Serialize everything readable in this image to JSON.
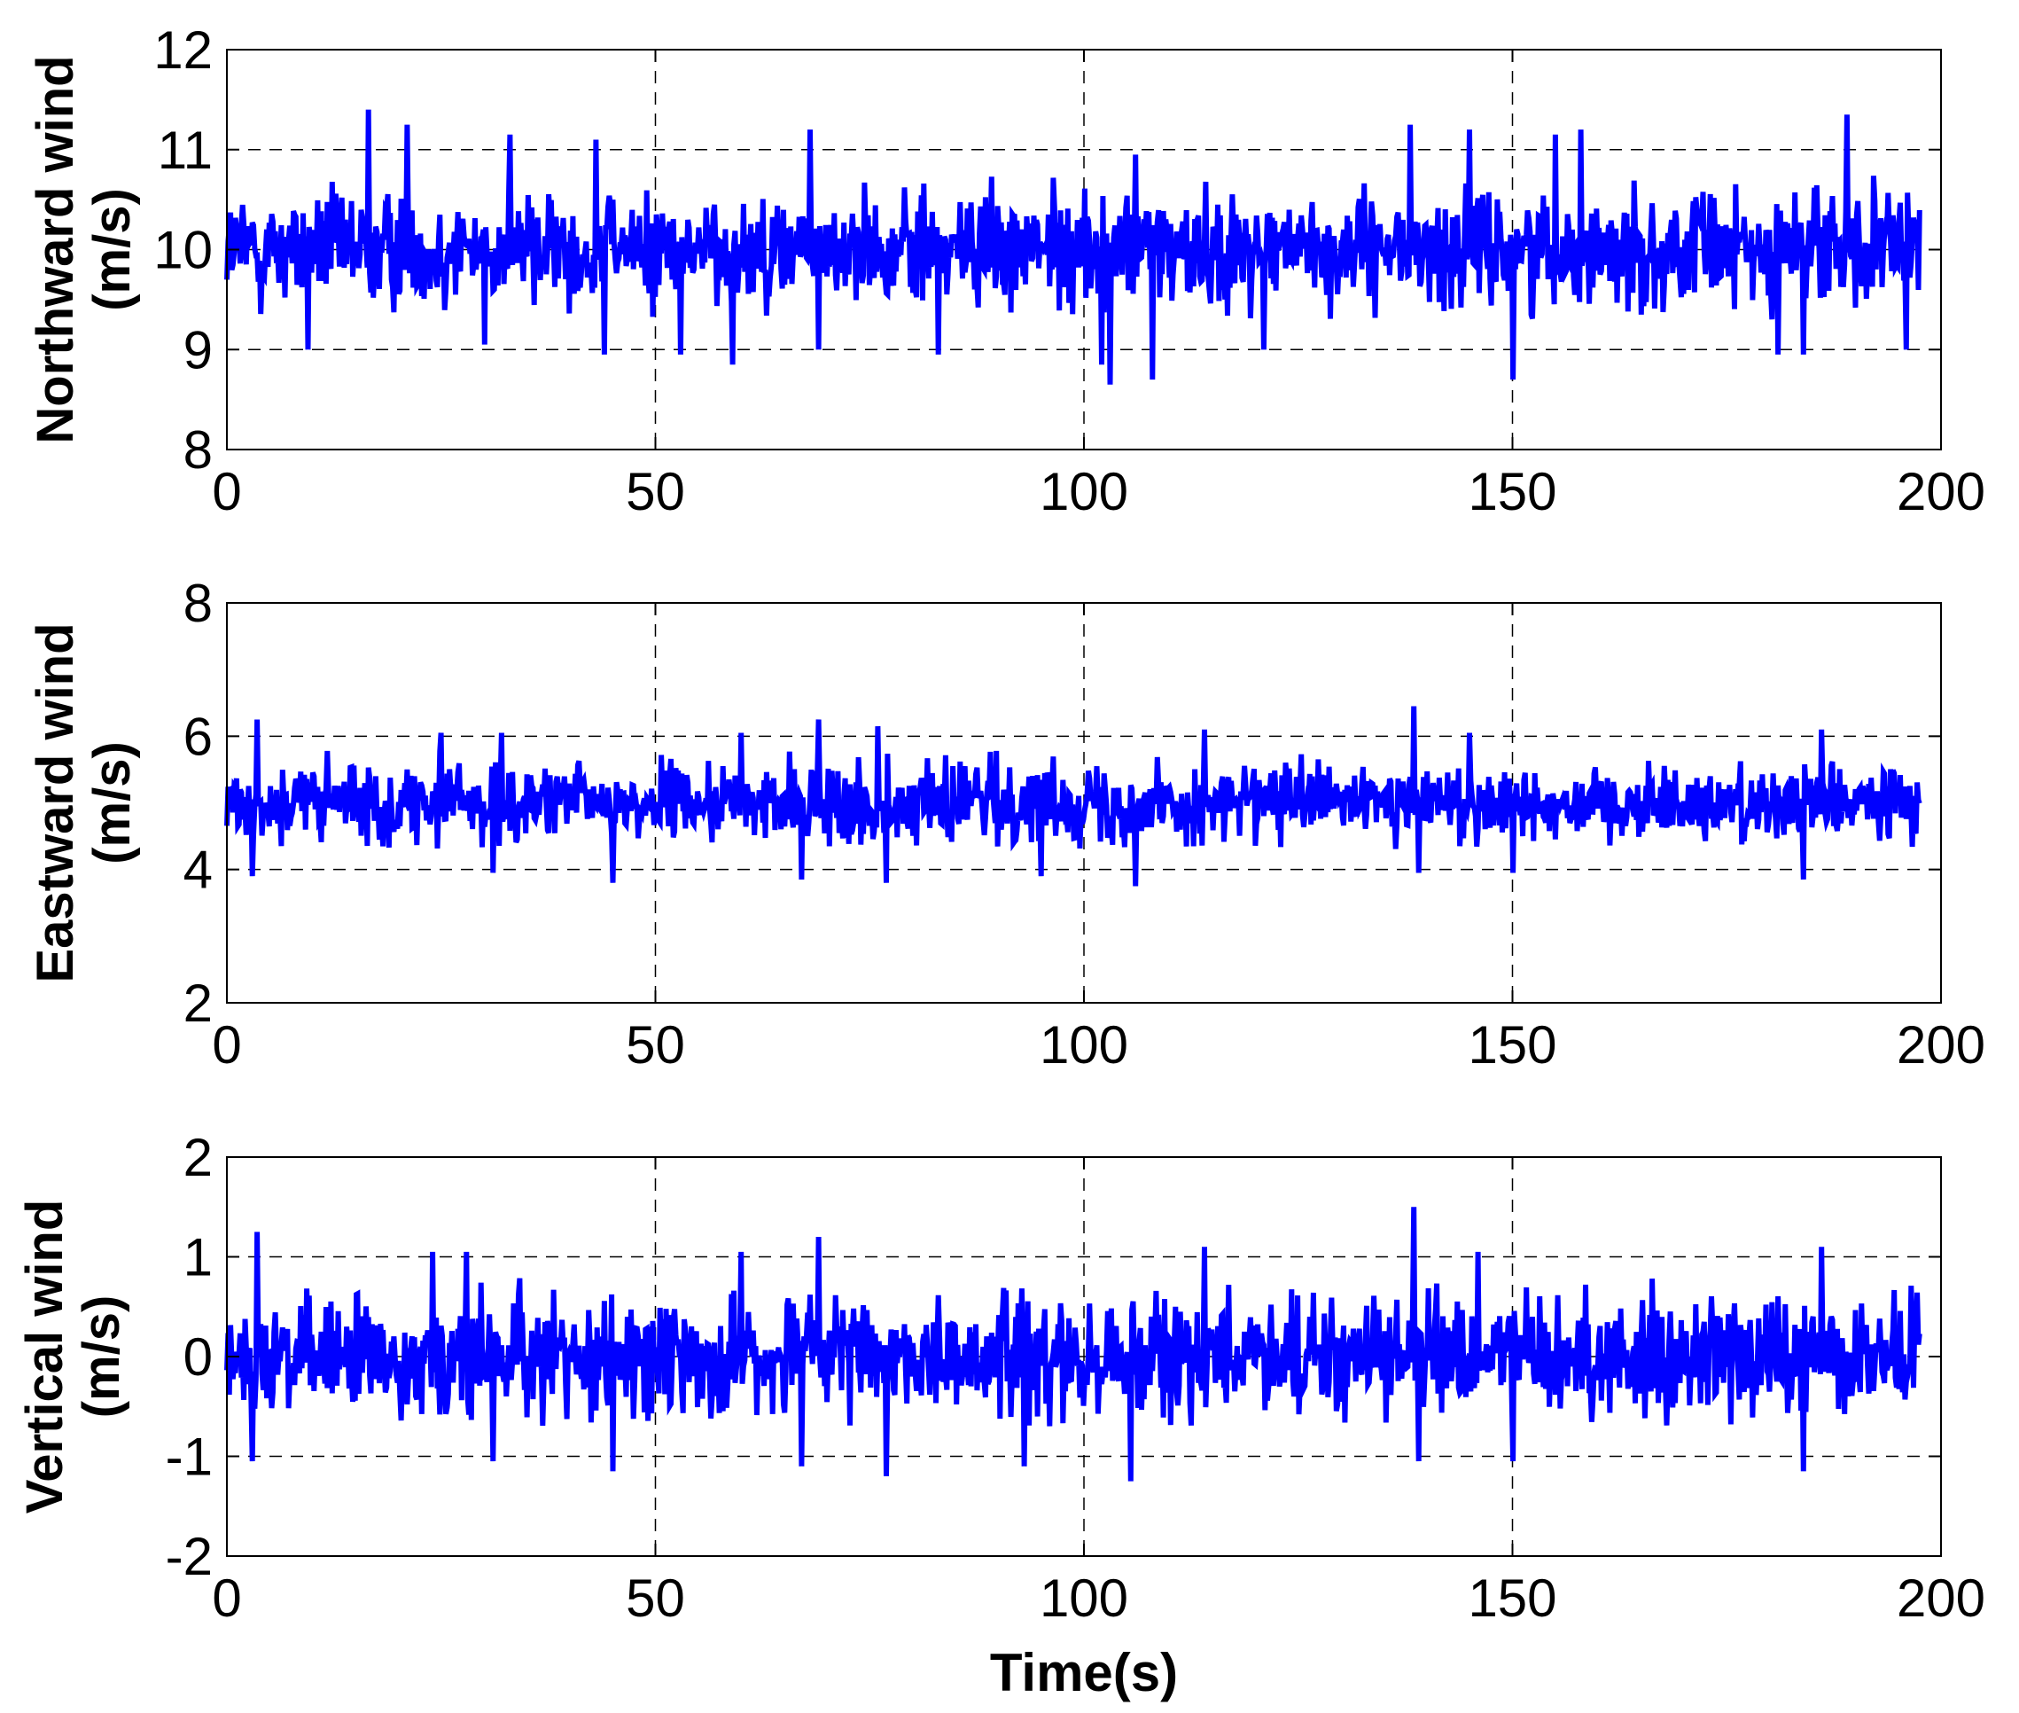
{
  "chart_data": [
    {
      "type": "line",
      "ylabel": [
        "Northward wind",
        "(m/s)"
      ],
      "xlabel": "",
      "xlim": [
        0,
        200
      ],
      "ylim": [
        8,
        12
      ],
      "xticks": [
        0,
        50,
        100,
        150,
        200
      ],
      "yticks": [
        8,
        9,
        10,
        11,
        12
      ],
      "grid": "dashed",
      "series": [
        {
          "color": "#0000ff",
          "x_range": [
            0,
            197.5
          ],
          "mean": 10.0,
          "typical_range": [
            9.3,
            10.75
          ],
          "peaks": [
            [
              16.5,
              11.4
            ],
            [
              21,
              11.25
            ],
            [
              30,
              11.0
            ],
            [
              33,
              11.15
            ],
            [
              43,
              11.1
            ],
            [
              68,
              11.2
            ],
            [
              106,
              10.95
            ],
            [
              138,
              11.25
            ],
            [
              145,
              11.2
            ],
            [
              155,
              11.15
            ],
            [
              158,
              11.2
            ],
            [
              189,
              11.35
            ]
          ],
          "troughs": [
            [
              9.5,
              9.0
            ],
            [
              30,
              9.05
            ],
            [
              44,
              8.95
            ],
            [
              53,
              8.95
            ],
            [
              59,
              8.85
            ],
            [
              69,
              9.0
            ],
            [
              83,
              8.95
            ],
            [
              102,
              8.85
            ],
            [
              103,
              8.65
            ],
            [
              108,
              8.7
            ],
            [
              121,
              9.0
            ],
            [
              150,
              8.7
            ],
            [
              181,
              8.95
            ],
            [
              184,
              8.95
            ],
            [
              196,
              9.0
            ]
          ]
        }
      ]
    },
    {
      "type": "line",
      "ylabel": [
        "Eastward wind",
        "(m/s)"
      ],
      "xlabel": "",
      "xlim": [
        0,
        200
      ],
      "ylim": [
        2,
        8
      ],
      "xticks": [
        0,
        50,
        100,
        150,
        200
      ],
      "yticks": [
        2,
        4,
        6,
        8
      ],
      "grid": "dashed",
      "series": [
        {
          "color": "#0000ff",
          "x_range": [
            0,
            197.5
          ],
          "mean": 5.0,
          "typical_range": [
            4.3,
            5.8
          ],
          "peaks": [
            [
              3.5,
              6.25
            ],
            [
              25,
              6.05
            ],
            [
              32,
              6.05
            ],
            [
              60,
              6.05
            ],
            [
              69,
              6.25
            ],
            [
              76,
              6.15
            ],
            [
              114,
              6.1
            ],
            [
              138.5,
              6.45
            ],
            [
              145,
              6.05
            ],
            [
              186,
              6.1
            ]
          ],
          "troughs": [
            [
              3,
              3.9
            ],
            [
              31,
              3.95
            ],
            [
              45,
              3.8
            ],
            [
              67,
              3.85
            ],
            [
              77,
              3.8
            ],
            [
              95,
              3.9
            ],
            [
              106,
              3.75
            ],
            [
              139,
              3.95
            ],
            [
              150,
              3.95
            ],
            [
              184,
              3.85
            ]
          ]
        }
      ]
    },
    {
      "type": "line",
      "ylabel": [
        "Vertical wind",
        "(m/s)"
      ],
      "xlabel": "Time(s)",
      "xlim": [
        0,
        200
      ],
      "ylim": [
        -2,
        2
      ],
      "xticks": [
        0,
        50,
        100,
        150,
        200
      ],
      "yticks": [
        -2,
        -1,
        0,
        1,
        2
      ],
      "grid": "dashed",
      "series": [
        {
          "color": "#0000ff",
          "x_range": [
            0,
            197.5
          ],
          "mean": 0.0,
          "typical_range": [
            -0.7,
            0.8
          ],
          "peaks": [
            [
              3.5,
              1.25
            ],
            [
              24,
              1.05
            ],
            [
              28,
              1.05
            ],
            [
              60,
              1.05
            ],
            [
              69,
              1.2
            ],
            [
              77,
              1.1
            ],
            [
              114,
              1.1
            ],
            [
              138.5,
              1.5
            ],
            [
              146,
              1.05
            ],
            [
              186,
              1.1
            ]
          ],
          "troughs": [
            [
              3,
              -1.05
            ],
            [
              31,
              -1.05
            ],
            [
              45,
              -1.15
            ],
            [
              67,
              -1.1
            ],
            [
              77,
              -1.2
            ],
            [
              93,
              -1.1
            ],
            [
              105.5,
              -1.25
            ],
            [
              139,
              -1.05
            ],
            [
              150,
              -1.05
            ],
            [
              184,
              -1.15
            ]
          ]
        }
      ]
    }
  ]
}
